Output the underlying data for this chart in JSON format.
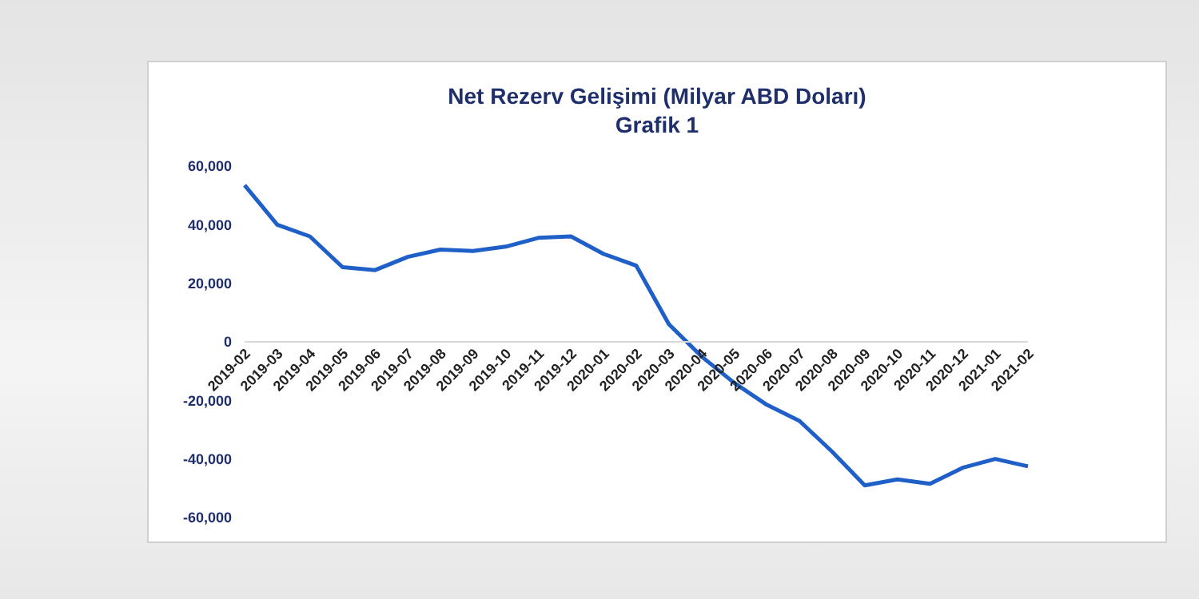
{
  "chart_data": {
    "type": "line",
    "title": "Net Rezerv  Gelişimi (Milyar ABD Doları)",
    "subtitle": "Grafik 1",
    "categories": [
      "2019-02",
      "2019-03",
      "2019-04",
      "2019-05",
      "2019-06",
      "2019-07",
      "2019-08",
      "2019-09",
      "2019-10",
      "2019-11",
      "2019-12",
      "2020-01",
      "2020-02",
      "2020-03",
      "2020-04",
      "2020-05",
      "2020-06",
      "2020-07",
      "2020-08",
      "2020-09",
      "2020-10",
      "2020-11",
      "2020-12",
      "2021-01",
      "2021-02"
    ],
    "series": [
      {
        "color": "#1f5fc8",
        "values": [
          53500,
          40000,
          36000,
          25500,
          24500,
          29000,
          31500,
          31000,
          32500,
          35500,
          36000,
          30000,
          26000,
          6000,
          -5000,
          -14000,
          -21500,
          -27000,
          -37500,
          -49000,
          -47000,
          -48500,
          -43000,
          -40000,
          -42500
        ]
      }
    ],
    "ylim": [
      -60000,
      60000
    ],
    "yticks": [
      {
        "value": -60000,
        "label": "-60,000"
      },
      {
        "value": -40000,
        "label": "-40,000"
      },
      {
        "value": -20000,
        "label": "-20,000"
      },
      0,
      {
        "value": 20000,
        "label": "20,000"
      },
      {
        "value": 40000,
        "label": "40,000"
      },
      {
        "value": 60000,
        "label": "60,000"
      }
    ],
    "marker": "none",
    "line_style": "solid"
  }
}
